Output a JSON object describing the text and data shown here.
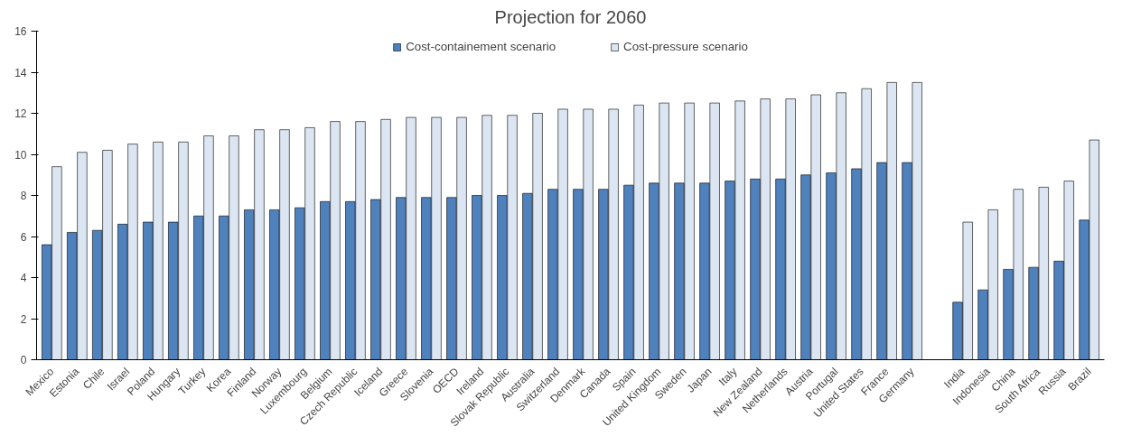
{
  "chart_data": {
    "type": "bar",
    "title": "Projection for 2060",
    "categories": [
      "Mexico",
      "Estonia",
      "Chile",
      "Israel",
      "Poland",
      "Hungary",
      "Turkey",
      "Korea",
      "Finland",
      "Norway",
      "Luxembourg",
      "Belgium",
      "Czech Republic",
      "Iceland",
      "Greece",
      "Slovenia",
      "OECD",
      "Ireland",
      "Slovak Republic",
      "Australia",
      "Switzerland",
      "Denmark",
      "Canada",
      "Spain",
      "United Kingdom",
      "Sweden",
      "Japan",
      "Italy",
      "New Zealand",
      "Netherlands",
      "Austria",
      "Portugal",
      "United States",
      "France",
      "Germany",
      null,
      "India",
      "Indonesia",
      "China",
      "South Africa",
      "Russia",
      "Brazil"
    ],
    "series": [
      {
        "name": "Cost-containement scenario",
        "color": "#4f81bd",
        "values": [
          5.6,
          6.2,
          6.3,
          6.6,
          6.7,
          6.7,
          7.0,
          7.0,
          7.3,
          7.3,
          7.4,
          7.7,
          7.7,
          7.8,
          7.9,
          7.9,
          7.9,
          8.0,
          8.0,
          8.1,
          8.3,
          8.3,
          8.3,
          8.5,
          8.6,
          8.6,
          8.6,
          8.7,
          8.8,
          8.8,
          9.0,
          9.1,
          9.3,
          9.6,
          9.6,
          null,
          2.8,
          3.4,
          4.4,
          4.5,
          4.8,
          6.8
        ]
      },
      {
        "name": "Cost-pressure scenario",
        "color": "#dce6f2",
        "values": [
          9.4,
          10.1,
          10.2,
          10.5,
          10.6,
          10.6,
          10.9,
          10.9,
          11.2,
          11.2,
          11.3,
          11.6,
          11.6,
          11.7,
          11.8,
          11.8,
          11.8,
          11.9,
          11.9,
          12.0,
          12.2,
          12.2,
          12.2,
          12.4,
          12.5,
          12.5,
          12.5,
          12.6,
          12.7,
          12.7,
          12.9,
          13.0,
          13.2,
          13.5,
          13.5,
          null,
          6.7,
          7.3,
          8.3,
          8.4,
          8.7,
          10.7
        ]
      }
    ],
    "ylim": [
      0,
      16
    ],
    "yticks": [
      0,
      2,
      4,
      6,
      8,
      10,
      12,
      14,
      16
    ],
    "grid": false,
    "legend": "top"
  }
}
